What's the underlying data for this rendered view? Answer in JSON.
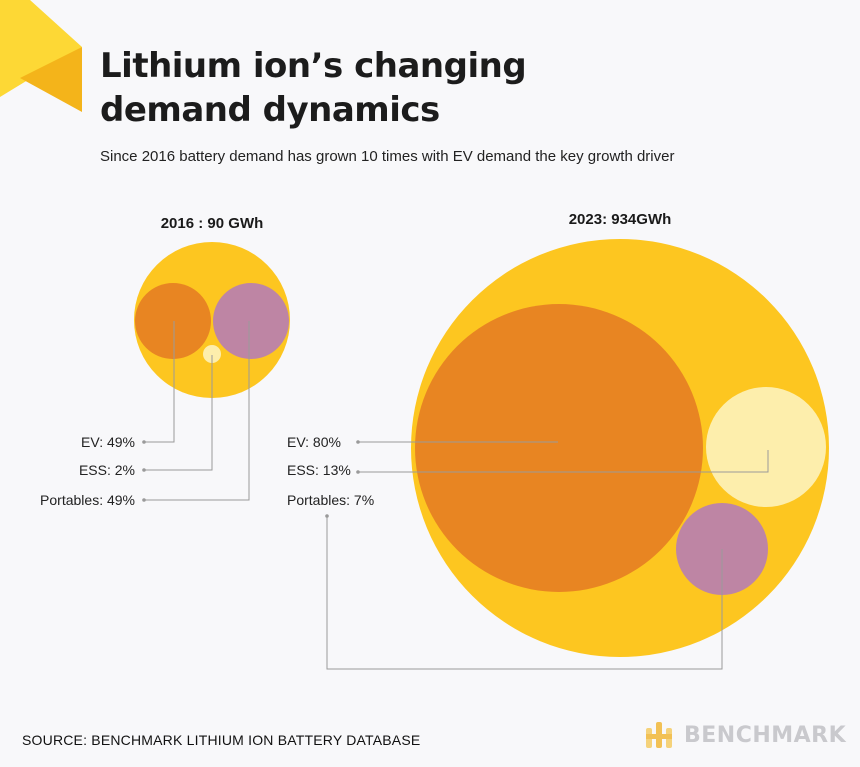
{
  "header": {
    "title_line1": "Lithium ion’s changing",
    "title_line2": "demand dynamics",
    "subtitle": "Since 2016 battery demand has grown 10 times with EV demand the key growth driver"
  },
  "footer": {
    "source": "SOURCE: BENCHMARK LITHIUM ION BATTERY DATABASE",
    "brand": "BENCHMARK"
  },
  "colors": {
    "total": "#fdc620",
    "ev": "#e88522",
    "ess": "#fdeeac",
    "portables": "#be85a4",
    "leader": "#9a9a9a",
    "accent_light": "#fdd835",
    "accent_dark": "#f4b41a",
    "logo_grey": "#c9c9cd"
  },
  "chart_data": [
    {
      "type": "bubble",
      "title": "2016 : 90 GWh",
      "year": 2016,
      "total_gwh": 90,
      "segments": [
        {
          "name": "EV",
          "label": "EV: 49%",
          "value": 49
        },
        {
          "name": "ESS",
          "label": "ESS: 2%",
          "value": 2
        },
        {
          "name": "Portables",
          "label": "Portables: 49%",
          "value": 49
        }
      ]
    },
    {
      "type": "bubble",
      "title": "2023: 934GWh",
      "year": 2023,
      "total_gwh": 934,
      "segments": [
        {
          "name": "EV",
          "label": "EV: 80%",
          "value": 80
        },
        {
          "name": "ESS",
          "label": "ESS: 13%",
          "value": 13
        },
        {
          "name": "Portables",
          "label": "Portables: 7%",
          "value": 7
        }
      ]
    }
  ]
}
